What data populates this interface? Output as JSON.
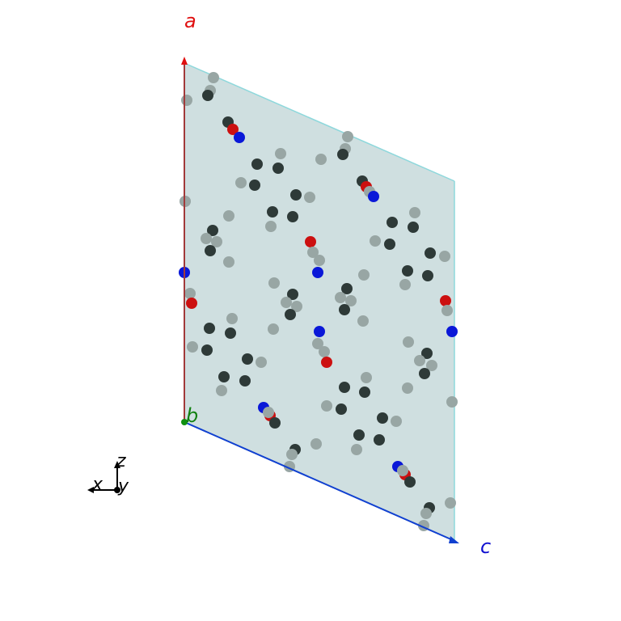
{
  "colors": {
    "plane_fill": "#cfdfe0",
    "plane_edge": "#8ed8dc",
    "axis_a": "#a23a3a",
    "axis_a_tip": "#e01010",
    "axis_c": "#1040d0",
    "origin_b": "#109010",
    "label_a": "#e01010",
    "label_b": "#108010",
    "label_c": "#1010d0",
    "atom_dark": "#2e3a38",
    "atom_grey": "#98a6a4",
    "atom_red": "#cc1010",
    "atom_blue": "#0a18d8",
    "triad": "#000000"
  },
  "labels": {
    "a": "a",
    "b": "b",
    "c": "c",
    "x": "x",
    "y": "y",
    "z": "z"
  },
  "atom_types": [
    "dark",
    "grey",
    "red",
    "blue"
  ]
}
